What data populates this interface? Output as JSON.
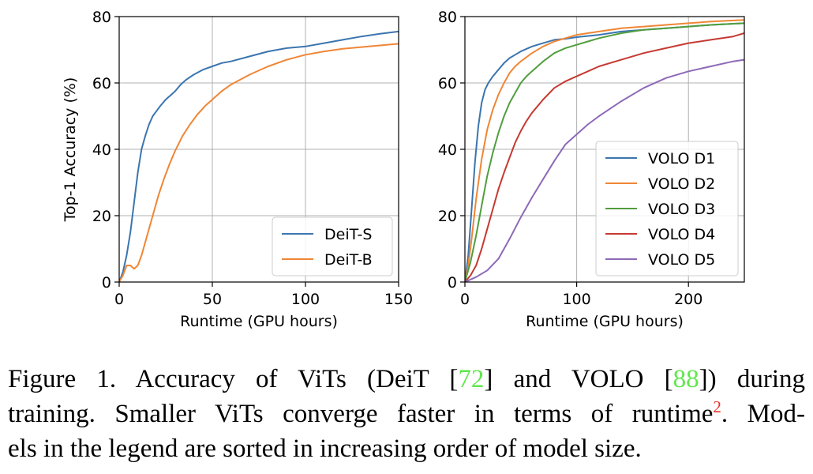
{
  "chart_data": [
    {
      "type": "line",
      "xlabel": "Runtime (GPU hours)",
      "ylabel": "Top-1 Accuracy (%)",
      "xlim": [
        0,
        150
      ],
      "ylim": [
        0,
        80
      ],
      "xticks": [
        0,
        50,
        100,
        150
      ],
      "yticks": [
        0,
        20,
        40,
        60,
        80
      ],
      "grid": true,
      "legend_position": "lower-right",
      "series": [
        {
          "name": "DeiT-S",
          "color": "#3b75af",
          "x": [
            0,
            2,
            4,
            6,
            8,
            10,
            12,
            14,
            16,
            18,
            20,
            22,
            25,
            28,
            30,
            33,
            36,
            40,
            45,
            50,
            55,
            60,
            70,
            80,
            90,
            100,
            110,
            120,
            130,
            140,
            150
          ],
          "y": [
            0,
            3,
            8,
            15,
            24,
            33,
            40,
            44,
            47.5,
            50,
            51.5,
            53,
            55,
            56.5,
            57.5,
            59.5,
            61,
            62.5,
            64,
            65,
            66,
            66.5,
            68,
            69.5,
            70.5,
            71,
            72,
            73,
            74,
            74.8,
            75.5
          ]
        },
        {
          "name": "DeiT-B",
          "color": "#ef8636",
          "x": [
            0,
            2,
            4,
            6,
            8,
            10,
            12,
            15,
            18,
            21,
            24,
            27,
            30,
            34,
            38,
            42,
            46,
            50,
            55,
            60,
            70,
            80,
            90,
            100,
            110,
            120,
            130,
            140,
            150
          ],
          "y": [
            0,
            2,
            5,
            5,
            4,
            5,
            8,
            14,
            20,
            26,
            31,
            35.5,
            39.5,
            44,
            47.5,
            50.5,
            53,
            55,
            57.5,
            59.5,
            62.5,
            65,
            67,
            68.5,
            69.5,
            70.3,
            70.8,
            71.3,
            71.8
          ]
        }
      ]
    },
    {
      "type": "line",
      "xlabel": "Runtime (GPU hours)",
      "ylabel": "",
      "xlim": [
        0,
        250
      ],
      "ylim": [
        0,
        80
      ],
      "xticks": [
        0,
        100,
        200
      ],
      "yticks": [
        0,
        20,
        40,
        60,
        80
      ],
      "grid": true,
      "legend_position": "lower-right",
      "series": [
        {
          "name": "VOLO D1",
          "color": "#3b75af",
          "x": [
            0,
            3,
            6,
            9,
            12,
            15,
            18,
            21,
            25,
            30,
            35,
            40,
            45,
            50,
            60,
            70,
            80,
            90,
            100,
            120,
            140,
            160,
            180,
            200,
            220,
            250
          ],
          "y": [
            0,
            8,
            22,
            36,
            47,
            54,
            58,
            60,
            62,
            64,
            66,
            67.5,
            68.5,
            69.5,
            71,
            72,
            73,
            73.3,
            73.8,
            74.5,
            75.5,
            76,
            76.5,
            77,
            77.5,
            78
          ]
        },
        {
          "name": "VOLO D2",
          "color": "#ef8636",
          "x": [
            0,
            3,
            6,
            10,
            15,
            20,
            25,
            30,
            35,
            40,
            45,
            50,
            60,
            70,
            80,
            90,
            100,
            120,
            140,
            160,
            180,
            200,
            220,
            250
          ],
          "y": [
            0,
            5,
            13,
            25,
            37,
            46,
            52,
            56.5,
            60,
            63,
            65,
            66.5,
            69,
            71,
            72.5,
            73.5,
            74.5,
            75.5,
            76.5,
            77,
            77.5,
            78,
            78.5,
            79
          ]
        },
        {
          "name": "VOLO D3",
          "color": "#519e3e",
          "x": [
            0,
            5,
            10,
            15,
            20,
            25,
            30,
            35,
            40,
            45,
            50,
            55,
            60,
            70,
            80,
            90,
            100,
            110,
            120,
            140,
            160,
            180,
            200,
            220,
            250
          ],
          "y": [
            0,
            6,
            14,
            23,
            32,
            39,
            45,
            50,
            54,
            57,
            60,
            62,
            63.5,
            66.5,
            69,
            70.5,
            71.5,
            72.5,
            73.5,
            75,
            76,
            76.5,
            77,
            77.5,
            78
          ]
        },
        {
          "name": "VOLO D4",
          "color": "#c53a32",
          "x": [
            0,
            5,
            10,
            15,
            20,
            25,
            30,
            35,
            40,
            45,
            50,
            55,
            60,
            70,
            80,
            90,
            100,
            110,
            120,
            140,
            160,
            180,
            200,
            220,
            240,
            250
          ],
          "y": [
            0,
            2,
            5,
            10,
            16,
            22,
            28,
            33,
            37.5,
            42,
            45.5,
            48.5,
            51,
            55,
            58.5,
            60.5,
            62,
            63.5,
            65,
            67,
            69,
            70.5,
            72,
            73,
            74,
            75
          ]
        },
        {
          "name": "VOLO D5",
          "color": "#8d69b8",
          "x": [
            0,
            10,
            20,
            30,
            40,
            50,
            60,
            70,
            80,
            90,
            100,
            110,
            120,
            140,
            160,
            180,
            200,
            220,
            240,
            250
          ],
          "y": [
            0,
            1.5,
            3.5,
            7,
            13,
            19.5,
            25.5,
            31,
            36.5,
            41.5,
            44.5,
            47.5,
            50,
            54.5,
            58.5,
            61.5,
            63.5,
            65,
            66.5,
            67
          ]
        }
      ]
    }
  ],
  "caption": {
    "line1": {
      "pre": "Figure 1.  Accuracy of ViTs (DeiT [",
      "cite1": "72",
      "mid": "] and VOLO [",
      "cite2": "88",
      "post": "]) during"
    },
    "line2": {
      "pre": "training. Smaller ViTs converge faster in terms of runtime",
      "footnote": "2",
      "post": ". Mod-"
    },
    "line3": "els in the legend are sorted in increasing order of model size."
  }
}
